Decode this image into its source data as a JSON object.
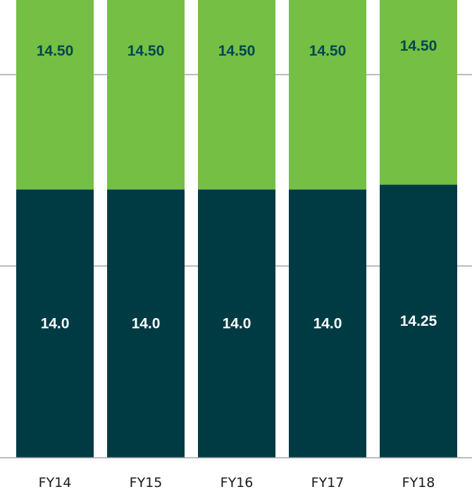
{
  "chart_data": {
    "type": "bar",
    "stacked": true,
    "categories": [
      "FY14",
      "FY15",
      "FY16",
      "FY17",
      "FY18"
    ],
    "series": [
      {
        "values": [
          14.0,
          14.0,
          14.0,
          14.0,
          14.25
        ],
        "color": "#003b44",
        "label_color": "#ffffff"
      },
      {
        "values": [
          14.5,
          14.5,
          14.5,
          14.5,
          14.5
        ],
        "color": "#74bf44",
        "label_color": "#00474f"
      }
    ],
    "value_labels": [
      [
        "14.0",
        "14.0",
        "14.0",
        "14.0",
        "14.25"
      ],
      [
        "14.50",
        "14.50",
        "14.50",
        "14.50",
        "14.50"
      ]
    ],
    "title": "",
    "xlabel": "",
    "ylabel": "",
    "ylim": [
      0,
      30
    ],
    "gridlines": [
      10,
      20
    ],
    "grid": true,
    "gridline_color": "#a6a6a6"
  }
}
